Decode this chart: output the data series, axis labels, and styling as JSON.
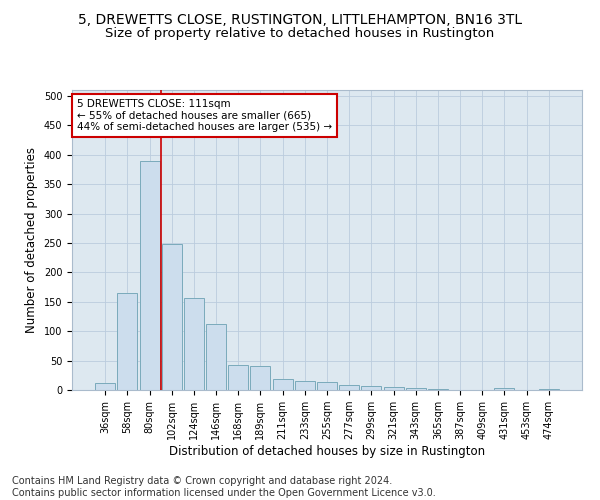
{
  "title": "5, DREWETTS CLOSE, RUSTINGTON, LITTLEHAMPTON, BN16 3TL",
  "subtitle": "Size of property relative to detached houses in Rustington",
  "xlabel": "Distribution of detached houses by size in Rustington",
  "ylabel": "Number of detached properties",
  "categories": [
    "36sqm",
    "58sqm",
    "80sqm",
    "102sqm",
    "124sqm",
    "146sqm",
    "168sqm",
    "189sqm",
    "211sqm",
    "233sqm",
    "255sqm",
    "277sqm",
    "299sqm",
    "321sqm",
    "343sqm",
    "365sqm",
    "387sqm",
    "409sqm",
    "431sqm",
    "453sqm",
    "474sqm"
  ],
  "values": [
    12,
    165,
    390,
    248,
    157,
    112,
    42,
    40,
    18,
    15,
    13,
    9,
    6,
    5,
    3,
    1,
    0,
    0,
    3,
    0,
    2
  ],
  "bar_color": "#ccdded",
  "bar_edge_color": "#7aaabb",
  "vline_x": 2.5,
  "vline_color": "#cc0000",
  "annotation_text": "5 DREWETTS CLOSE: 111sqm\n← 55% of detached houses are smaller (665)\n44% of semi-detached houses are larger (535) →",
  "annotation_box_color": "#ffffff",
  "annotation_box_edge_color": "#cc0000",
  "ylim": [
    0,
    510
  ],
  "yticks": [
    0,
    50,
    100,
    150,
    200,
    250,
    300,
    350,
    400,
    450,
    500
  ],
  "grid_color": "#bbccdd",
  "bg_color": "#dde8f0",
  "footer": "Contains HM Land Registry data © Crown copyright and database right 2024.\nContains public sector information licensed under the Open Government Licence v3.0.",
  "title_fontsize": 10,
  "subtitle_fontsize": 9.5,
  "xlabel_fontsize": 8.5,
  "ylabel_fontsize": 8.5,
  "tick_fontsize": 7,
  "footer_fontsize": 7
}
